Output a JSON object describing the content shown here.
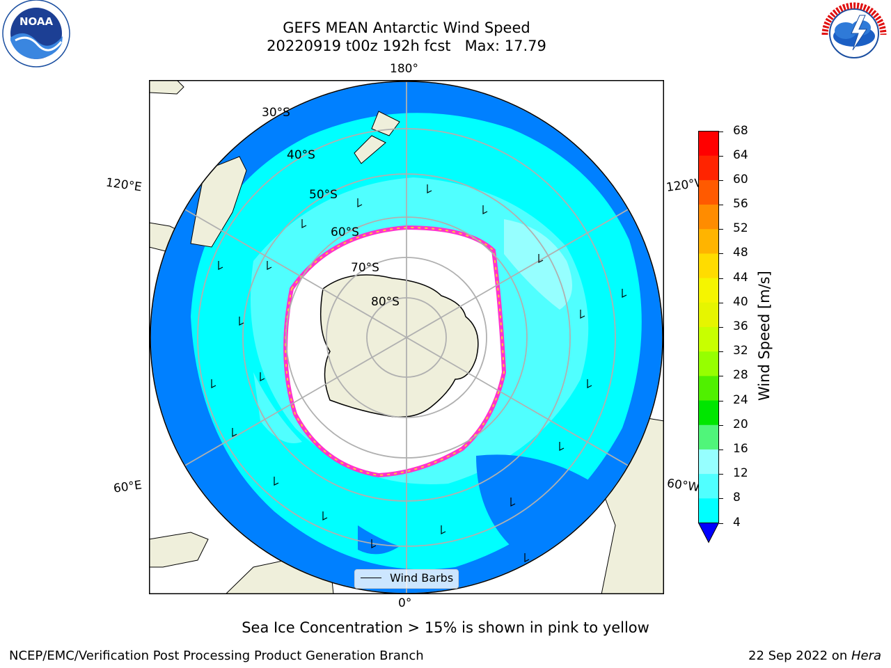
{
  "header": {
    "title_line1": "GEFS MEAN Antarctic Wind Speed",
    "title_line2": "20220919 t00z 192h fcst   Max: 17.79"
  },
  "logos": {
    "left": "NOAA",
    "left_ring_text": "NATIONAL OCEANIC AND ATMOSPHERIC ADMINISTRATION · U.S. DEPARTMENT OF COMMERCE",
    "right": "NATIONAL WEATHER SERVICE"
  },
  "map": {
    "longitude_labels": {
      "top": "180°",
      "bottom": "0°",
      "upper_left": "120°E",
      "upper_right": "120°W",
      "lower_left": "60°E",
      "lower_right": "60°W"
    },
    "latitude_labels": [
      "30°S",
      "40°S",
      "50°S",
      "60°S",
      "70°S",
      "80°S"
    ],
    "legend": {
      "label": "Wind Barbs"
    }
  },
  "colorbar": {
    "title": "Wind Speed [m/s]",
    "ticks": [
      "68",
      "64",
      "60",
      "56",
      "52",
      "48",
      "44",
      "40",
      "36",
      "32",
      "28",
      "24",
      "20",
      "16",
      "12",
      "8",
      "4"
    ],
    "colors": [
      "#ff0000",
      "#ff2400",
      "#ff5a00",
      "#ff8c00",
      "#ffb400",
      "#ffdc00",
      "#f5f500",
      "#e6f500",
      "#c8ff00",
      "#96ff00",
      "#50f000",
      "#00e600",
      "#50f57a",
      "#96ffff",
      "#50ffff",
      "#00ffff",
      "#0080ff"
    ],
    "extend_color": "#0000ff"
  },
  "colors": {
    "land": "#efefdb",
    "ocean_4_8": "#0080ff",
    "ocean_8_12": "#00ffff",
    "ocean_12_16": "#50ffff",
    "ocean_16_20": "#96ffff",
    "sea_ice_edge": "#ff33cc",
    "sea_ice_yellow": "#ffcc33",
    "graticule": "#b0b0b0"
  },
  "note": "Sea Ice Concentration > 15% is shown in pink to yellow",
  "footer": {
    "left": "NCEP/EMC/Verification Post Processing Product Generation Branch",
    "right_prefix": "22 Sep 2022 on ",
    "right_host": "Hera"
  }
}
